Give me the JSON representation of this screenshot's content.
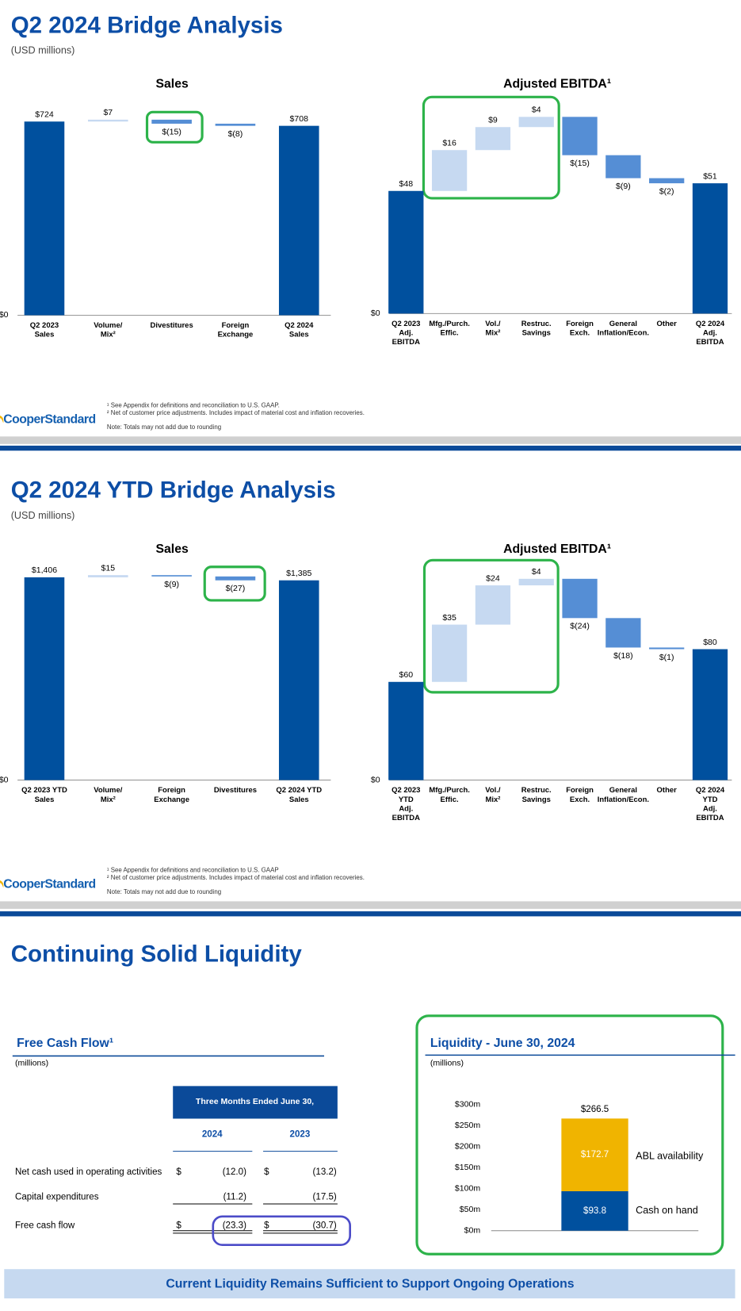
{
  "slides": [
    {
      "title": "Q2 2024 Bridge Analysis",
      "subtitle": "(USD millions)",
      "footnotes": [
        "¹ See Appendix for definitions and reconciliation to U.S. GAAP.",
        "² Net of customer price adjustments. Includes impact of material cost and inflation recoveries."
      ],
      "note": "Note: Totals may not add due to rounding",
      "logo": "CooperStandard"
    },
    {
      "title": "Q2 2024 YTD Bridge Analysis",
      "subtitle": "(USD millions)",
      "footnotes": [
        "¹ See Appendix for definitions and reconciliation to U.S. GAAP",
        "² Net of customer price adjustments. Includes impact of material cost and inflation recoveries."
      ],
      "note": "Note: Totals may not add due to rounding",
      "logo": "CooperStandard"
    },
    {
      "title": "Continuing Solid Liquidity",
      "banner": "Current Liquidity Remains Sufficient to Support Ongoing Operations"
    }
  ],
  "chart_data": [
    {
      "type": "waterfall",
      "title": "Sales",
      "categories": [
        "Q2 2023\nSales",
        "Volume/\nMix²",
        "Divestitures",
        "Foreign\nExchange",
        "Q2 2024\nSales"
      ],
      "values": [
        724,
        7,
        -15,
        -8,
        708
      ],
      "value_labels": [
        "$724",
        "$7",
        "$(15)",
        "$(8)",
        "$708"
      ],
      "measure": [
        "total",
        "relative",
        "relative",
        "relative",
        "total"
      ],
      "colors": {
        "total": "#00509e",
        "increase": "#c6d9f1",
        "decrease": "#558ed5"
      },
      "ylim": [
        0,
        800
      ],
      "yticks": [
        {
          "value": 0,
          "label": "$0"
        }
      ]
    },
    {
      "type": "waterfall",
      "title": "Adjusted EBITDA¹",
      "categories": [
        "Q2 2023\nAdj.\nEBITDA",
        "Mfg./Purch.\nEffic.",
        "Vol./\nMix²",
        "Restruc.\nSavings",
        "Foreign\nExch.",
        "General\nInflation/Econ.",
        "Other",
        "Q2 2024\nAdj.\nEBITDA"
      ],
      "values": [
        48,
        16,
        9,
        4,
        -15,
        -9,
        -2,
        51
      ],
      "value_labels": [
        "$48",
        "$16",
        "$9",
        "$4",
        "$(15)",
        "$(9)",
        "$(2)",
        "$51"
      ],
      "measure": [
        "total",
        "relative",
        "relative",
        "relative",
        "relative",
        "relative",
        "relative",
        "total"
      ],
      "colors": {
        "total": "#00509e",
        "increase": "#c6d9f1",
        "decrease": "#558ed5"
      },
      "ylim": [
        0,
        90
      ],
      "yticks": [
        {
          "value": 0,
          "label": "$0"
        }
      ]
    },
    {
      "type": "waterfall",
      "title": "Sales",
      "categories": [
        "Q2 2023 YTD\nSales",
        "Volume/\nMix²",
        "Foreign\nExchange",
        "Divestitures",
        "Q2 2024 YTD\nSales"
      ],
      "values": [
        1406,
        15,
        -9,
        -27,
        1385
      ],
      "value_labels": [
        "$1,406",
        "$15",
        "$(9)",
        "$(27)",
        "$1,385"
      ],
      "measure": [
        "total",
        "relative",
        "relative",
        "relative",
        "total"
      ],
      "colors": {
        "total": "#00509e",
        "increase": "#c6d9f1",
        "decrease": "#558ed5"
      },
      "ylim": [
        0,
        1600
      ],
      "yticks": [
        {
          "value": 0,
          "label": "$0"
        }
      ]
    },
    {
      "type": "waterfall",
      "title": "Adjusted EBITDA¹",
      "categories": [
        "Q2 2023\nYTD\nAdj.\nEBITDA",
        "Mfg./Purch.\nEffic.",
        "Vol./\nMix²",
        "Restruc.\nSavings",
        "Foreign\nExch.",
        "General\nInflation/Econ.",
        "Other",
        "Q2 2024\nYTD\nAdj.\nEBITDA"
      ],
      "values": [
        60,
        35,
        24,
        4,
        -24,
        -18,
        -1,
        80
      ],
      "value_labels": [
        "$60",
        "$35",
        "$24",
        "$4",
        "$(24)",
        "$(18)",
        "$(1)",
        "$80"
      ],
      "measure": [
        "total",
        "relative",
        "relative",
        "relative",
        "relative",
        "relative",
        "relative",
        "total"
      ],
      "colors": {
        "total": "#00509e",
        "increase": "#c6d9f1",
        "decrease": "#558ed5"
      },
      "ylim": [
        0,
        140
      ],
      "yticks": [
        {
          "value": 0,
          "label": "$0"
        }
      ]
    },
    {
      "type": "stacked_bar",
      "title": "Liquidity - June 30, 2024",
      "subtitle": "(millions)",
      "series": [
        {
          "name": "Cash on hand",
          "color": "#00509e",
          "values": [
            93.8
          ],
          "value_labels": [
            "$93.8"
          ]
        },
        {
          "name": "ABL availability",
          "color": "#f0b400",
          "values": [
            172.7
          ],
          "value_labels": [
            "$172.7"
          ]
        }
      ],
      "total": 266.5,
      "total_label": "$266.5",
      "ylim": [
        0,
        300
      ],
      "yticks": [
        {
          "value": 0,
          "label": "$0m"
        },
        {
          "value": 50,
          "label": "$50m"
        },
        {
          "value": 100,
          "label": "$100m"
        },
        {
          "value": 150,
          "label": "$150m"
        },
        {
          "value": 200,
          "label": "$200m"
        },
        {
          "value": 250,
          "label": "$250m"
        },
        {
          "value": 300,
          "label": "$300m"
        }
      ]
    }
  ],
  "table": {
    "title": "Free Cash Flow¹",
    "unit": "(millions)",
    "header": "Three Months Ended June 30,",
    "columns": [
      "2024",
      "2023"
    ],
    "rows": [
      {
        "label": "Net cash used in operating activities",
        "cells": [
          "$",
          "(12.0)",
          "$",
          "(13.2)"
        ]
      },
      {
        "label": "Capital expenditures",
        "cells": [
          "(11.2)",
          "(17.5)"
        ]
      },
      {
        "label": "Free cash flow",
        "cells": [
          "$",
          "(23.3)",
          "$",
          "(30.7)"
        ]
      }
    ]
  }
}
